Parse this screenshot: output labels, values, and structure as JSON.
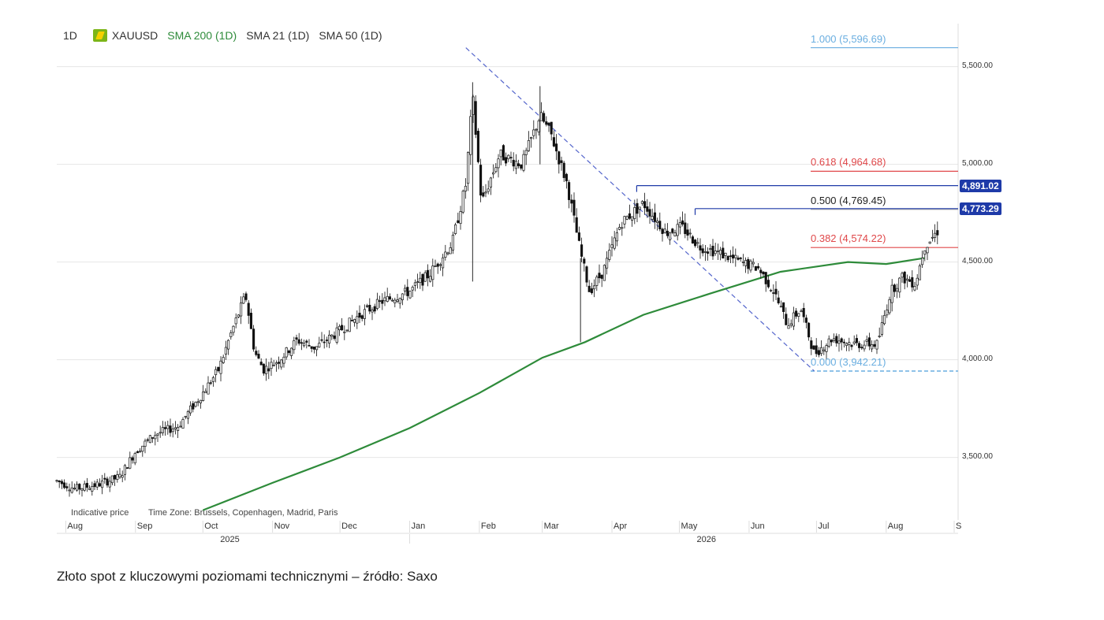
{
  "legend": {
    "timeframe": "1D",
    "symbol": "XAUUSD",
    "symbol_icon": "gold-bar-icon",
    "sma200": "SMA 200 (1D)",
    "sma21": "SMA 21 (1D)",
    "sma50": "SMA 50 (1D)"
  },
  "footer": {
    "indicative": "Indicative price",
    "timezone": "Time Zone: Brussels, Copenhagen, Madrid, Paris"
  },
  "caption": "Złoto spot z kluczowymi poziomami technicznymi – źródło: Saxo",
  "colors": {
    "sma200": "#2e8b3a",
    "fib_blue": "#6aaee0",
    "fib_red": "#e0484a",
    "fib_gray": "#a9a9a9",
    "level_line": "#1e3aa8",
    "tag_bg": "#1e3aa8",
    "candle": "#111111"
  },
  "chart_data": {
    "type": "line",
    "title": "",
    "x_months": [
      "Aug",
      "Sep",
      "Oct",
      "Nov",
      "Dec",
      "Jan",
      "Feb",
      "Mar",
      "Apr",
      "May",
      "Jun",
      "Jul",
      "Aug",
      "S"
    ],
    "x_years": [
      "2025",
      "2026"
    ],
    "y_ticks": [
      "5,500.00",
      "5,000.00",
      "4,500.00",
      "4,000.00",
      "3,500.00"
    ],
    "ylim": [
      3180,
      5720
    ],
    "grid": true,
    "series": [
      {
        "name": "XAUUSD",
        "style": "candles",
        "x": [
          "2025-07-28",
          "2025-08-05",
          "2025-08-15",
          "2025-08-25",
          "2025-09-01",
          "2025-09-10",
          "2025-09-20",
          "2025-10-01",
          "2025-10-08",
          "2025-10-14",
          "2025-10-20",
          "2025-10-24",
          "2025-10-28",
          "2025-11-04",
          "2025-11-12",
          "2025-11-20",
          "2025-12-01",
          "2025-12-10",
          "2025-12-20",
          "2026-01-01",
          "2026-01-10",
          "2026-01-20",
          "2026-01-26",
          "2026-01-29",
          "2026-02-02",
          "2026-02-10",
          "2026-02-20",
          "2026-02-28",
          "2026-03-05",
          "2026-03-12",
          "2026-03-18",
          "2026-03-22",
          "2026-03-28",
          "2026-04-05",
          "2026-04-15",
          "2026-04-25",
          "2026-05-02",
          "2026-05-10",
          "2026-05-18",
          "2026-05-28",
          "2026-06-05",
          "2026-06-12",
          "2026-06-18",
          "2026-06-24",
          "2026-06-30",
          "2026-07-08",
          "2026-07-18",
          "2026-07-28",
          "2026-08-03",
          "2026-08-08",
          "2026-08-14",
          "2026-08-18",
          "2026-08-24"
        ],
        "y": [
          3380,
          3340,
          3360,
          3400,
          3530,
          3620,
          3660,
          3830,
          3950,
          4150,
          4330,
          4040,
          3950,
          4000,
          4100,
          4060,
          4150,
          4230,
          4300,
          4350,
          4440,
          4600,
          4900,
          5350,
          4800,
          5050,
          5000,
          5250,
          5150,
          4900,
          4550,
          4350,
          4450,
          4700,
          4800,
          4650,
          4680,
          4580,
          4550,
          4500,
          4470,
          4350,
          4180,
          4260,
          4030,
          4110,
          4080,
          4080,
          4350,
          4420,
          4390,
          4580,
          4660
        ]
      },
      {
        "name": "SMA 200 (1D)",
        "style": "line",
        "x": [
          "2025-10-01",
          "2025-11-01",
          "2025-12-01",
          "2026-01-01",
          "2026-02-01",
          "2026-03-01",
          "2026-03-20",
          "2026-04-15",
          "2026-05-15",
          "2026-06-15",
          "2026-07-15",
          "2026-08-01",
          "2026-08-18"
        ],
        "y": [
          3230,
          3370,
          3500,
          3650,
          3830,
          4010,
          4090,
          4230,
          4340,
          4450,
          4500,
          4490,
          4520
        ]
      }
    ],
    "fibonacci": [
      {
        "label": "1.000 (5,596.69)",
        "value": 5596.69,
        "color": "#6aaee0"
      },
      {
        "label": "0.618 (4,964.68)",
        "value": 4964.68,
        "color": "#e0484a"
      },
      {
        "label": "0.500 (4,769.45)",
        "value": 4769.45,
        "color": "#a9a9a9"
      },
      {
        "label": "0.382 (4,574.22)",
        "value": 4574.22,
        "color": "#e0484a"
      },
      {
        "label": "0.000 (3,942.21)",
        "value": 3942.21,
        "color": "#6aaee0"
      }
    ],
    "price_levels": [
      {
        "label": "4,891.02",
        "value": 4891.02,
        "start": "2026-04-12"
      },
      {
        "label": "4,773.29",
        "value": 4773.29,
        "start": "2026-05-08"
      }
    ],
    "trendline": {
      "x": [
        "2026-01-26",
        "2026-06-30"
      ],
      "y": [
        5596.69,
        3942.21
      ]
    }
  }
}
